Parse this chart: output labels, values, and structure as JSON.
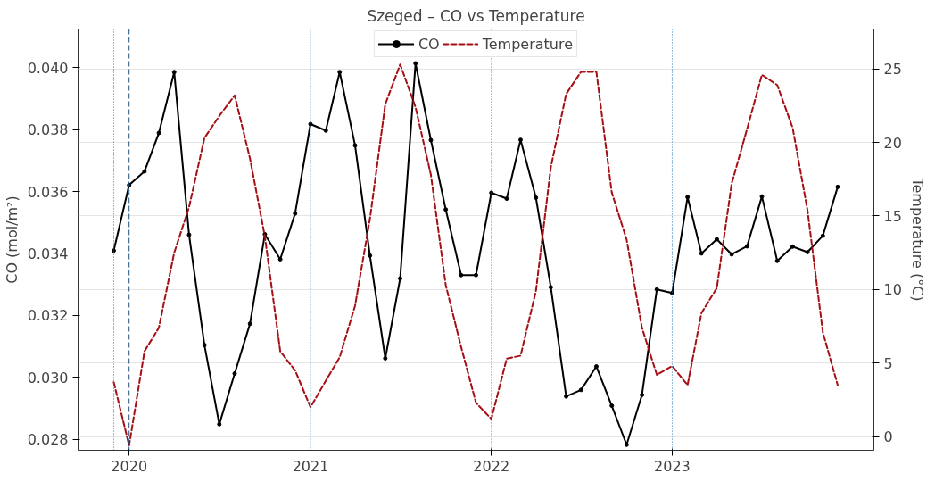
{
  "chart_data": {
    "type": "line",
    "title": "Szeged – CO vs Temperature",
    "ylabel": "CO (mol/m²)",
    "y2label": "Temperature (°C)",
    "x": [
      "2019-12",
      "2020-01",
      "2020-02",
      "2020-03",
      "2020-04",
      "2020-05",
      "2020-06",
      "2020-07",
      "2020-08",
      "2020-09",
      "2020-10",
      "2020-11",
      "2020-12",
      "2021-01",
      "2021-02",
      "2021-03",
      "2021-04",
      "2021-05",
      "2021-06",
      "2021-07",
      "2021-08",
      "2021-09",
      "2021-10",
      "2021-11",
      "2021-12",
      "2022-01",
      "2022-02",
      "2022-03",
      "2022-04",
      "2022-05",
      "2022-06",
      "2022-07",
      "2022-08",
      "2022-09",
      "2022-10",
      "2022-11",
      "2022-12",
      "2023-01",
      "2023-02",
      "2023-03",
      "2023-04",
      "2023-05",
      "2023-06",
      "2023-07",
      "2023-08",
      "2023-09",
      "2023-10",
      "2023-11",
      "2023-12"
    ],
    "series": [
      {
        "name": "CO",
        "color": "#000000",
        "marker": "circle",
        "line_style": "solid",
        "values": [
          0.03409,
          0.03621,
          0.03665,
          0.03789,
          0.03986,
          0.0346,
          0.03104,
          0.02848,
          0.03012,
          0.03173,
          0.03462,
          0.03381,
          0.03529,
          0.03818,
          0.03797,
          0.03986,
          0.03749,
          0.03393,
          0.03061,
          0.03319,
          0.04014,
          0.03766,
          0.03542,
          0.0333,
          0.0333,
          0.03596,
          0.03577,
          0.03767,
          0.0358,
          0.03291,
          0.02938,
          0.02959,
          0.03035,
          0.02908,
          0.02782,
          0.02943,
          0.03284,
          0.03272,
          0.03582,
          0.034,
          0.03446,
          0.03397,
          0.03423,
          0.03584,
          0.03376,
          0.03422,
          0.03404,
          0.03457,
          0.03615
        ]
      },
      {
        "name": "Temperature",
        "color": "#a50f15",
        "axis": "y2",
        "marker": "none",
        "line_style": "dashed",
        "values": [
          3.7,
          -0.6,
          5.8,
          7.4,
          12.5,
          15.6,
          20.3,
          21.8,
          23.2,
          18.9,
          13.6,
          5.8,
          4.5,
          2.0,
          3.8,
          5.4,
          8.9,
          14.8,
          22.6,
          25.3,
          22.4,
          17.8,
          10.3,
          6.1,
          2.3,
          1.2,
          5.3,
          5.5,
          9.9,
          18.3,
          23.3,
          24.8,
          24.8,
          16.6,
          13.4,
          7.4,
          4.2,
          4.8,
          3.5,
          8.4,
          10.1,
          17.2,
          20.9,
          24.6,
          23.9,
          21.0,
          15.4,
          7.1,
          3.5
        ]
      }
    ],
    "xlim": [
      "2019-09-20",
      "2024-02-12"
    ],
    "xticks": [
      "2020",
      "2021",
      "2022",
      "2023"
    ],
    "ylim": [
      0.02764,
      0.04125
    ],
    "yticks": [
      {
        "value": 0.028,
        "label": "0.028"
      },
      {
        "value": 0.03,
        "label": "0.030"
      },
      {
        "value": 0.032,
        "label": "0.032"
      },
      {
        "value": 0.034,
        "label": "0.034"
      },
      {
        "value": 0.036,
        "label": "0.036"
      },
      {
        "value": 0.038,
        "label": "0.038"
      },
      {
        "value": 0.04,
        "label": "0.040"
      }
    ],
    "y2lim": [
      -0.93,
      27.71
    ],
    "y2ticks": [
      0,
      5,
      10,
      15,
      20,
      25
    ],
    "grid": "y",
    "legend": "top",
    "ref_lines": [
      {
        "axis": "x",
        "value": "2019-12",
        "color": "#1f77b4",
        "line_style": "dotted"
      },
      {
        "axis": "x",
        "value": "2020-01",
        "color": "#1f4e79",
        "line_style": "dashed"
      },
      {
        "axis": "x",
        "value": "2021-01",
        "color": "#1f77b4",
        "line_style": "dotted"
      },
      {
        "axis": "x",
        "value": "2022-01",
        "color": "#1f77b4",
        "line_style": "dotted"
      },
      {
        "axis": "x",
        "value": "2023-01",
        "color": "#1f77b4",
        "line_style": "dotted"
      }
    ]
  }
}
